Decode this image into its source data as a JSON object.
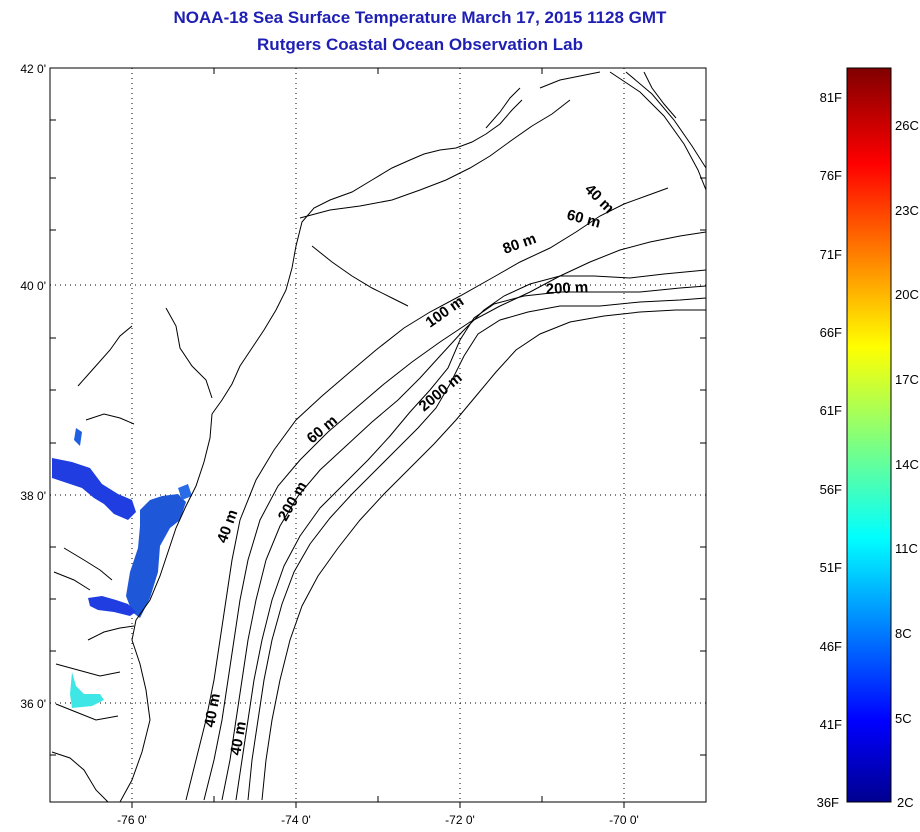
{
  "header": {
    "title_line1": "NOAA-18 Sea Surface Temperature March 17, 2015 1128 GMT",
    "title_line2": "Rutgers Coastal Ocean Observation Lab"
  },
  "map": {
    "lat_labels": [
      "42 0'",
      "40 0'",
      "38 0'",
      "36 0'"
    ],
    "lon_labels": [
      "-76 0'",
      "-74 0'",
      "-72 0'",
      "-70 0'"
    ],
    "isobath_labels": [
      "40 m",
      "60 m",
      "80 m",
      "200 m",
      "100 m",
      "60 m",
      "2000 m",
      "40 m",
      "200 m",
      "40 m",
      "40 m"
    ],
    "grid": true,
    "colors": {
      "coast": "#000000",
      "grid": "#000000",
      "water_cold": "#1f3de0",
      "water_warm": "#3fe6e6"
    }
  },
  "colorbar": {
    "fahrenheit_labels": [
      "81F",
      "76F",
      "71F",
      "66F",
      "61F",
      "56F",
      "51F",
      "46F",
      "41F",
      "36F"
    ],
    "celsius_labels": [
      "26C",
      "23C",
      "20C",
      "17C",
      "14C",
      "11C",
      "8C",
      "5C",
      "2C"
    ],
    "colormap": "jet",
    "range_F": [
      36,
      84
    ]
  }
}
